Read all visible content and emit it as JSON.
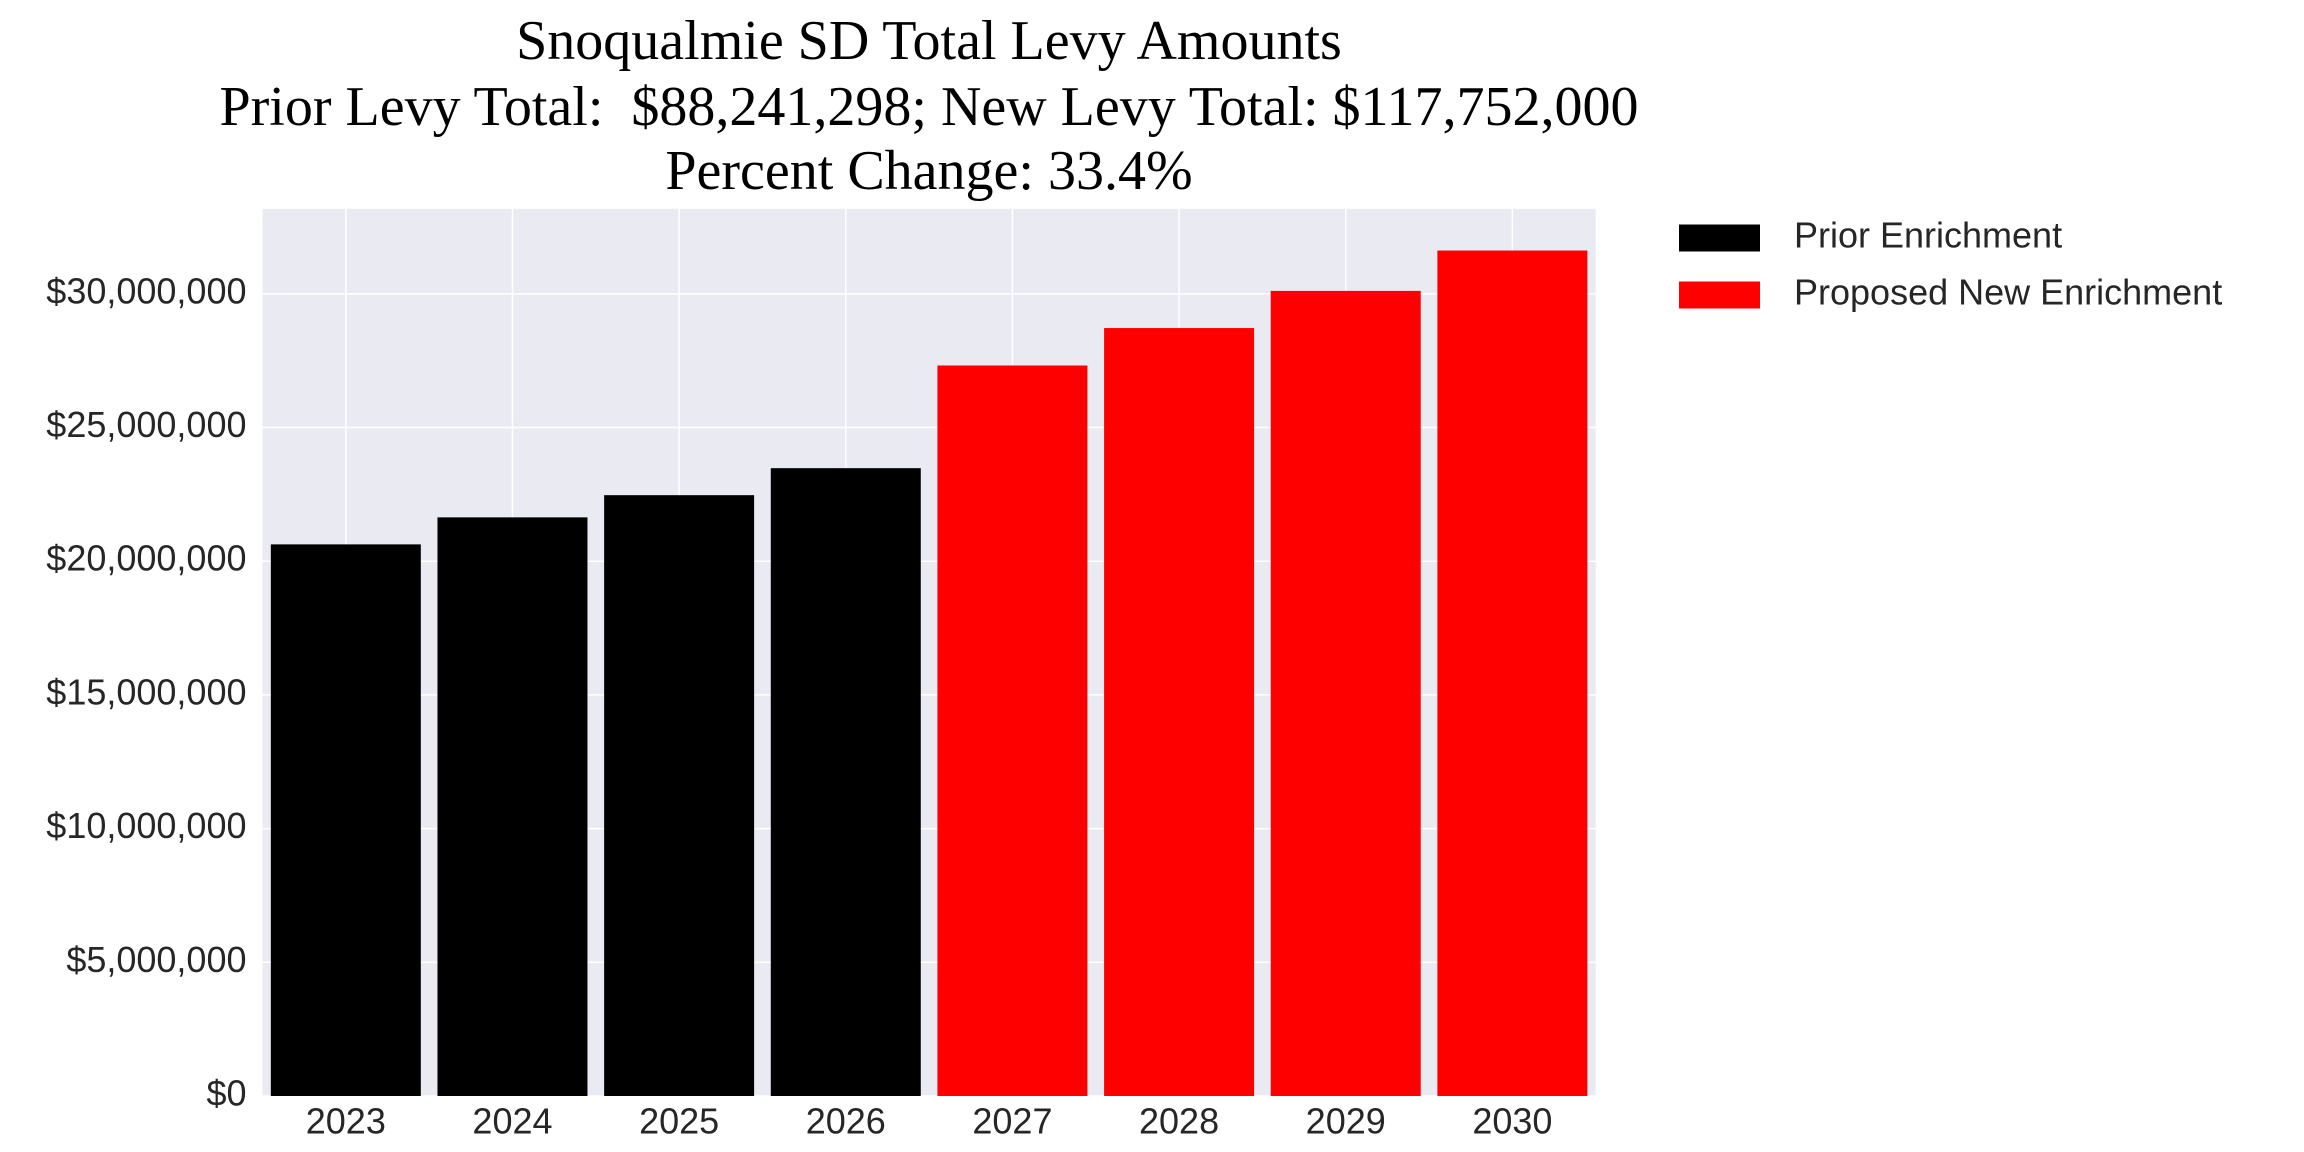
{
  "chart_data": {
    "type": "bar",
    "title": [
      "Snoqualmie SD Total Levy Amounts",
      "Prior Levy Total:  $88,241,298; New Levy Total: $117,752,000",
      "Percent Change: 33.4%"
    ],
    "categories": [
      "2023",
      "2024",
      "2025",
      "2026",
      "2027",
      "2028",
      "2029",
      "2030"
    ],
    "series": [
      {
        "name": "Prior Enrichment",
        "color": "#000000",
        "values": [
          20630000,
          21640000,
          22470000,
          23480000,
          null,
          null,
          null,
          null
        ]
      },
      {
        "name": "Proposed New Enrichment",
        "color": "#ff0000",
        "values": [
          null,
          null,
          null,
          null,
          27320000,
          28720000,
          30110000,
          31620000
        ]
      }
    ],
    "ylim": [
      0,
      33180000
    ],
    "yticks": [
      {
        "value": 0,
        "label": "$0"
      },
      {
        "value": 5000000,
        "label": "$5,000,000"
      },
      {
        "value": 10000000,
        "label": "$10,000,000"
      },
      {
        "value": 15000000,
        "label": "$15,000,000"
      },
      {
        "value": 20000000,
        "label": "$20,000,000"
      },
      {
        "value": 25000000,
        "label": "$25,000,000"
      },
      {
        "value": 30000000,
        "label": "$30,000,000"
      }
    ],
    "grid": true,
    "legend": "outside-right"
  }
}
